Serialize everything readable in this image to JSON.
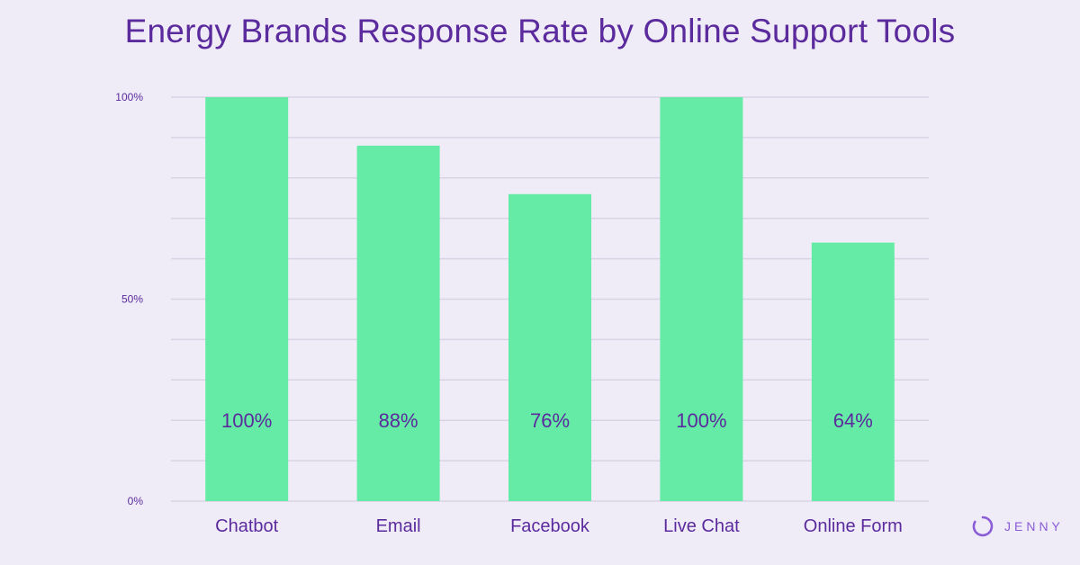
{
  "chart_data": {
    "type": "bar",
    "title": "Energy Brands Response Rate by Online Support Tools",
    "categories": [
      "Chatbot",
      "Email",
      "Facebook",
      "Live Chat",
      "Online Form"
    ],
    "values": [
      100,
      88,
      76,
      100,
      64
    ],
    "value_labels": [
      "100%",
      "88%",
      "76%",
      "100%",
      "64%"
    ],
    "ylim": [
      0,
      100
    ],
    "yticks": [
      {
        "value": 0,
        "label": "0%"
      },
      {
        "value": 50,
        "label": "50%"
      },
      {
        "value": 100,
        "label": "100%"
      }
    ],
    "gridlines": [
      0,
      10,
      20,
      30,
      40,
      50,
      60,
      70,
      80,
      90,
      100
    ],
    "grid": true,
    "legend": "none",
    "colors": {
      "bar": "#65eba6",
      "text": "#5b2a9c",
      "grid": "#d8d4e4",
      "background": "#efecf8"
    }
  },
  "brand": {
    "name": "JENNY",
    "icon": "jenny-logo-icon",
    "color": "#8a5cd6"
  }
}
